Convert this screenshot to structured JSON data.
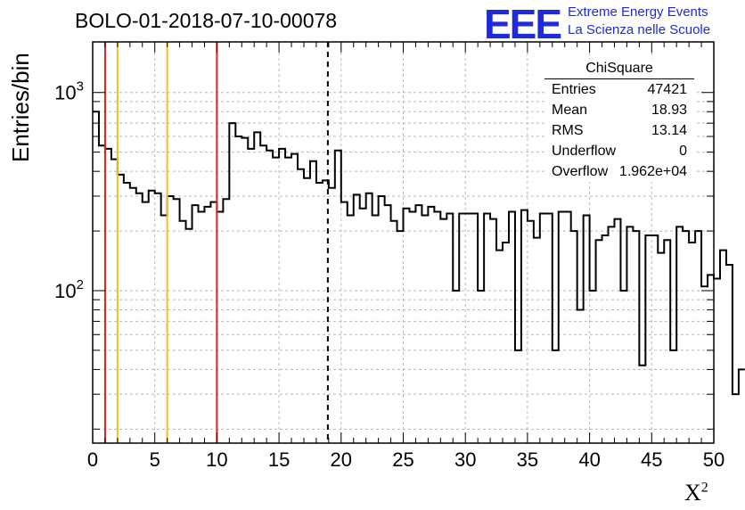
{
  "title": "BOLO-01-2018-07-10-00078",
  "logo": {
    "mark": "EEE",
    "line1": "Extreme Energy Events",
    "line2": "La Scienza nelle Scuole",
    "color": "#1f2ad8"
  },
  "stats": {
    "header": "ChiSquare",
    "rows": [
      {
        "label": "Entries",
        "value": "47421"
      },
      {
        "label": "Mean",
        "value": "18.93"
      },
      {
        "label": "RMS",
        "value": "13.14"
      },
      {
        "label": "Underflow",
        "value": "0"
      },
      {
        "label": "Overflow",
        "value": "1.962e+04"
      }
    ]
  },
  "chart_data": {
    "type": "histogram",
    "ylabel": "Entries/bin",
    "xlabel": "X",
    "xlabel_superscript": "2",
    "xlim": [
      0,
      50
    ],
    "ylim": [
      17,
      1800
    ],
    "yscale": "log",
    "grid": true,
    "x_ticks": [
      "0",
      "5",
      "10",
      "15",
      "20",
      "25",
      "30",
      "35",
      "40",
      "45",
      "50"
    ],
    "y_ticks": [
      {
        "base": "10",
        "exp": "2",
        "value": 100
      },
      {
        "base": "10",
        "exp": "3",
        "value": 1000
      }
    ],
    "bin_width": 0.5,
    "values": [
      800,
      540,
      520,
      460,
      385,
      350,
      330,
      310,
      280,
      320,
      310,
      240,
      300,
      290,
      225,
      205,
      270,
      250,
      265,
      280,
      250,
      290,
      700,
      600,
      590,
      520,
      630,
      540,
      510,
      470,
      520,
      470,
      490,
      410,
      370,
      450,
      350,
      360,
      330,
      510,
      280,
      240,
      305,
      260,
      310,
      240,
      300,
      270,
      225,
      200,
      260,
      250,
      270,
      240,
      265,
      250,
      230,
      245,
      100,
      245,
      245,
      245,
      100,
      245,
      230,
      160,
      175,
      250,
      50,
      255,
      225,
      185,
      245,
      245,
      50,
      250,
      250,
      200,
      80,
      240,
      100,
      180,
      190,
      210,
      230,
      100,
      210,
      200,
      42,
      190,
      190,
      155,
      180,
      50,
      210,
      200,
      175,
      200,
      105,
      120,
      115,
      160,
      135,
      30,
      40
    ],
    "vlines": [
      {
        "x": 1,
        "color": "#e02020",
        "style": "solid"
      },
      {
        "x": 2,
        "color": "#f0c020",
        "style": "solid"
      },
      {
        "x": 6,
        "color": "#f0c020",
        "style": "solid"
      },
      {
        "x": 10,
        "color": "#e02020",
        "style": "solid"
      },
      {
        "x": 18.93,
        "color": "#000000",
        "style": "dashed"
      }
    ]
  }
}
